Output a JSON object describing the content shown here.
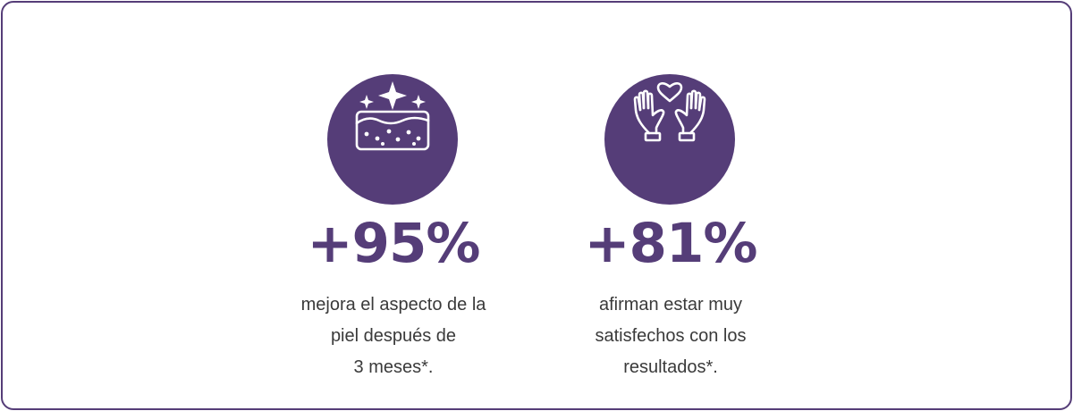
{
  "colors": {
    "accent": "#553d78",
    "text": "#3a3a3a",
    "background": "#ffffff"
  },
  "stats": [
    {
      "icon": "sparkling-skin-icon",
      "value": "+95%",
      "description_lines": [
        "mejora el aspecto de la",
        "piel después de",
        "3 meses*."
      ]
    },
    {
      "icon": "hands-heart-icon",
      "value": "+81%",
      "description_lines": [
        "afirman estar muy",
        "satisfechos con los",
        "resultados*."
      ]
    }
  ]
}
